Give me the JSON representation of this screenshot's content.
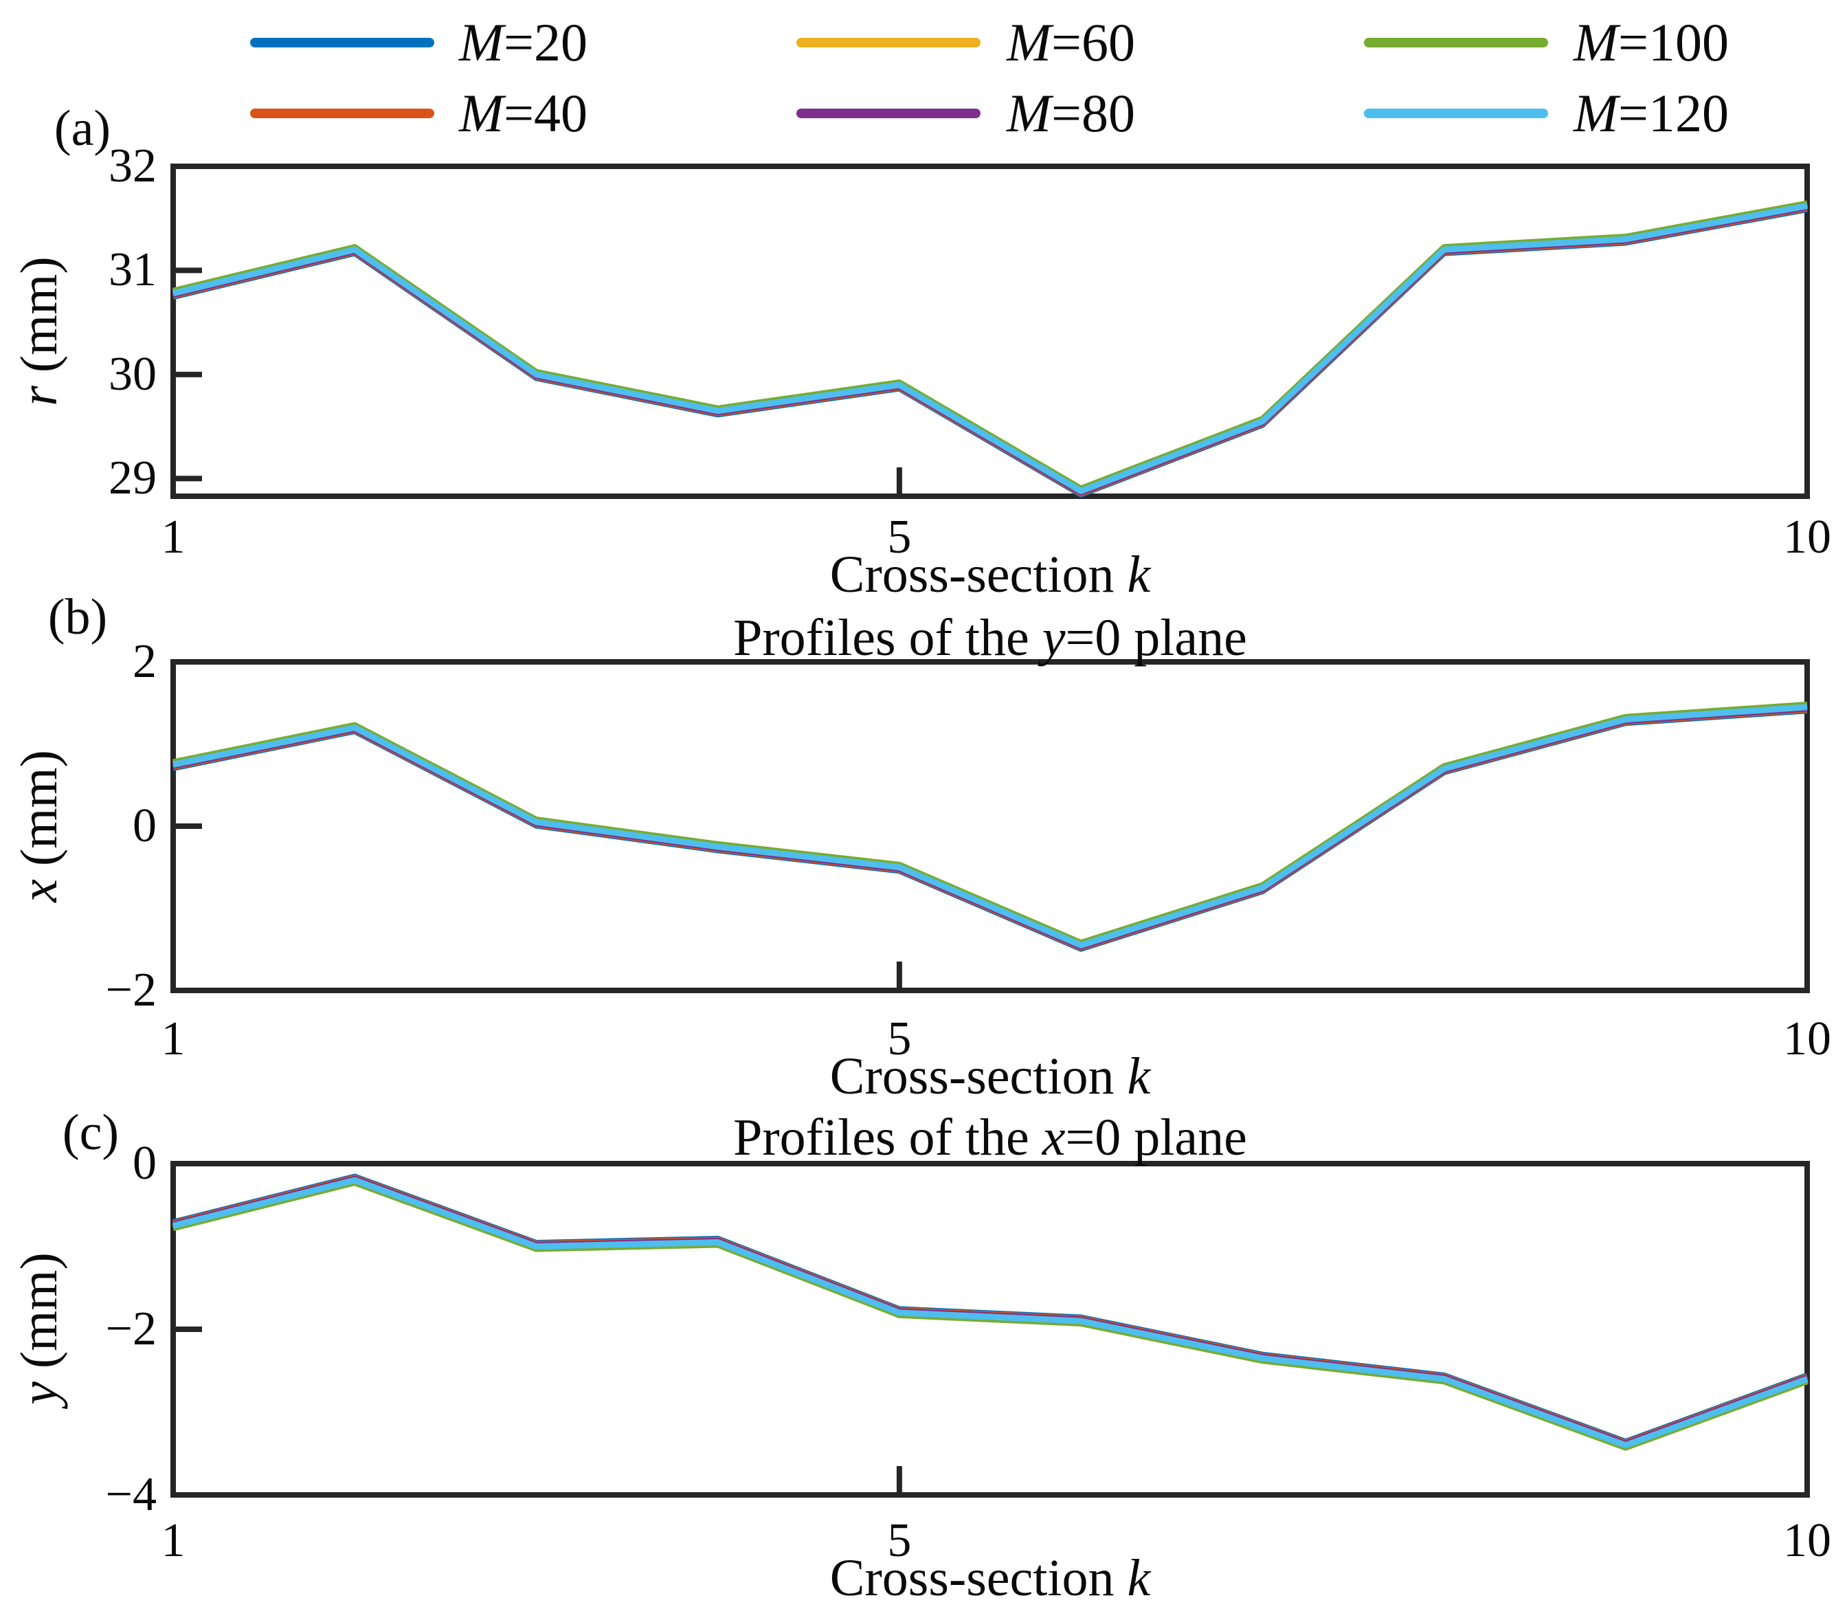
{
  "legend": {
    "rows": [
      [
        {
          "label": "M=20",
          "color": "#0072BD"
        },
        {
          "label": "M=60",
          "color": "#EDB120"
        },
        {
          "label": "M=100",
          "color": "#77AC30"
        }
      ],
      [
        {
          "label": "M=40",
          "color": "#D95319"
        },
        {
          "label": "M=80",
          "color": "#7E2F8E"
        },
        {
          "label": "M=120",
          "color": "#4DBEEE"
        }
      ]
    ]
  },
  "chart_data": [
    {
      "type": "line",
      "panel_label": "(a)",
      "title": "",
      "xlabel": "Cross-section k",
      "ylabel": "r (mm)",
      "x": [
        1,
        2,
        3,
        4,
        5,
        6,
        7,
        8,
        9,
        10
      ],
      "xlim": [
        1,
        10
      ],
      "ylim": [
        28.83,
        32
      ],
      "xticks": [
        {
          "v": 1,
          "label": "1"
        },
        {
          "v": 5,
          "label": "5"
        },
        {
          "v": 10,
          "label": "10"
        }
      ],
      "yticks": [
        {
          "v": 32,
          "label": "32"
        },
        {
          "v": 31,
          "label": "31"
        },
        {
          "v": 30,
          "label": "30"
        },
        {
          "v": 29,
          "label": "29"
        }
      ],
      "grid": false,
      "series": [
        {
          "name": "M=20",
          "color": "#0072BD",
          "values": [
            30.78,
            31.2,
            30.0,
            29.65,
            29.9,
            28.88,
            29.55,
            31.2,
            31.3,
            31.62
          ]
        },
        {
          "name": "M=40",
          "color": "#D95319",
          "values": [
            30.78,
            31.2,
            30.0,
            29.65,
            29.9,
            28.88,
            29.55,
            31.2,
            31.3,
            31.62
          ]
        },
        {
          "name": "M=60",
          "color": "#EDB120",
          "values": [
            30.78,
            31.2,
            30.0,
            29.65,
            29.9,
            28.88,
            29.55,
            31.2,
            31.3,
            31.62
          ]
        },
        {
          "name": "M=80",
          "color": "#7E2F8E",
          "values": [
            30.78,
            31.2,
            30.0,
            29.65,
            29.9,
            28.88,
            29.55,
            31.2,
            31.3,
            31.62
          ]
        },
        {
          "name": "M=100",
          "color": "#77AC30",
          "values": [
            30.78,
            31.2,
            30.0,
            29.65,
            29.9,
            28.88,
            29.55,
            31.2,
            31.3,
            31.62
          ]
        },
        {
          "name": "M=120",
          "color": "#4DBEEE",
          "values": [
            30.78,
            31.2,
            30.0,
            29.65,
            29.9,
            28.88,
            29.55,
            31.2,
            31.3,
            31.62
          ]
        }
      ]
    },
    {
      "type": "line",
      "panel_label": "(b)",
      "title": "Profiles of the y=0 plane",
      "xlabel": "Cross-section k",
      "ylabel": "x (mm)",
      "x": [
        1,
        2,
        3,
        4,
        5,
        6,
        7,
        8,
        9,
        10
      ],
      "xlim": [
        1,
        10
      ],
      "ylim": [
        -2,
        2
      ],
      "xticks": [
        {
          "v": 1,
          "label": "1"
        },
        {
          "v": 5,
          "label": "5"
        },
        {
          "v": 10,
          "label": "10"
        }
      ],
      "yticks": [
        {
          "v": 2,
          "label": "2"
        },
        {
          "v": 0,
          "label": "0"
        },
        {
          "v": -2,
          "label": "−2"
        }
      ],
      "grid": false,
      "series": [
        {
          "name": "M=20",
          "color": "#0072BD",
          "values": [
            0.75,
            1.2,
            0.05,
            -0.25,
            -0.5,
            -1.45,
            -0.75,
            0.7,
            1.3,
            1.45
          ]
        },
        {
          "name": "M=40",
          "color": "#D95319",
          "values": [
            0.75,
            1.2,
            0.05,
            -0.25,
            -0.5,
            -1.45,
            -0.75,
            0.7,
            1.3,
            1.45
          ]
        },
        {
          "name": "M=60",
          "color": "#EDB120",
          "values": [
            0.75,
            1.2,
            0.05,
            -0.25,
            -0.5,
            -1.45,
            -0.75,
            0.7,
            1.3,
            1.45
          ]
        },
        {
          "name": "M=80",
          "color": "#7E2F8E",
          "values": [
            0.75,
            1.2,
            0.05,
            -0.25,
            -0.5,
            -1.45,
            -0.75,
            0.7,
            1.3,
            1.45
          ]
        },
        {
          "name": "M=100",
          "color": "#77AC30",
          "values": [
            0.75,
            1.2,
            0.05,
            -0.25,
            -0.5,
            -1.45,
            -0.75,
            0.7,
            1.3,
            1.45
          ]
        },
        {
          "name": "M=120",
          "color": "#4DBEEE",
          "values": [
            0.75,
            1.2,
            0.05,
            -0.25,
            -0.5,
            -1.45,
            -0.75,
            0.7,
            1.3,
            1.45
          ]
        }
      ]
    },
    {
      "type": "line",
      "panel_label": "(c)",
      "title": "Profiles of the x=0 plane",
      "xlabel": "Cross-section k",
      "ylabel": "y (mm)",
      "x": [
        1,
        2,
        3,
        4,
        5,
        6,
        7,
        8,
        9,
        10
      ],
      "xlim": [
        1,
        10
      ],
      "ylim": [
        -4,
        0
      ],
      "xticks": [
        {
          "v": 1,
          "label": "1"
        },
        {
          "v": 5,
          "label": "5"
        },
        {
          "v": 10,
          "label": "10"
        }
      ],
      "yticks": [
        {
          "v": 0,
          "label": "0"
        },
        {
          "v": -2,
          "label": "−2"
        },
        {
          "v": -4,
          "label": "−4"
        }
      ],
      "grid": false,
      "series": [
        {
          "name": "M=20",
          "color": "#0072BD",
          "values": [
            -0.75,
            -0.2,
            -1.0,
            -0.95,
            -1.8,
            -1.9,
            -2.35,
            -2.6,
            -3.4,
            -2.6
          ]
        },
        {
          "name": "M=40",
          "color": "#D95319",
          "values": [
            -0.75,
            -0.2,
            -1.0,
            -0.95,
            -1.8,
            -1.9,
            -2.35,
            -2.6,
            -3.4,
            -2.6
          ]
        },
        {
          "name": "M=60",
          "color": "#EDB120",
          "values": [
            -0.75,
            -0.2,
            -1.0,
            -0.95,
            -1.8,
            -1.9,
            -2.35,
            -2.6,
            -3.4,
            -2.6
          ]
        },
        {
          "name": "M=80",
          "color": "#7E2F8E",
          "values": [
            -0.75,
            -0.2,
            -1.0,
            -0.95,
            -1.8,
            -1.9,
            -2.35,
            -2.6,
            -3.4,
            -2.6
          ]
        },
        {
          "name": "M=100",
          "color": "#77AC30",
          "values": [
            -0.75,
            -0.2,
            -1.0,
            -0.95,
            -1.8,
            -1.9,
            -2.35,
            -2.6,
            -3.4,
            -2.6
          ]
        },
        {
          "name": "M=120",
          "color": "#4DBEEE",
          "values": [
            -0.75,
            -0.2,
            -1.0,
            -0.95,
            -1.8,
            -1.9,
            -2.35,
            -2.6,
            -3.4,
            -2.6
          ]
        }
      ]
    }
  ]
}
